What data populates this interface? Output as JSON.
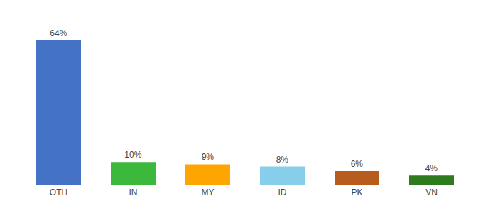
{
  "chart_data": {
    "type": "bar",
    "categories": [
      "OTH",
      "IN",
      "MY",
      "ID",
      "PK",
      "VN"
    ],
    "values": [
      64,
      10,
      9,
      8,
      6,
      4
    ],
    "value_labels": [
      "64%",
      "10%",
      "9%",
      "8%",
      "6%",
      "4%"
    ],
    "colors": [
      "#4472C4",
      "#3CB83C",
      "#FFA500",
      "#87CEEB",
      "#B85C1E",
      "#2D7A1F"
    ],
    "ylim": [
      0,
      74
    ],
    "data_labels": true,
    "tick_labels": "x",
    "grid": false
  }
}
